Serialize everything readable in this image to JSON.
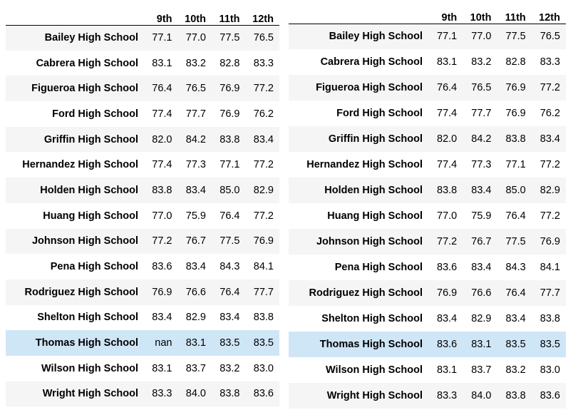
{
  "columns": [
    "9th",
    "10th",
    "11th",
    "12th"
  ],
  "left_table": {
    "rows": [
      {
        "school": "Bailey High School",
        "values": [
          "77.1",
          "77.0",
          "77.5",
          "76.5"
        ]
      },
      {
        "school": "Cabrera High School",
        "values": [
          "83.1",
          "83.2",
          "82.8",
          "83.3"
        ]
      },
      {
        "school": "Figueroa High School",
        "values": [
          "76.4",
          "76.5",
          "76.9",
          "77.2"
        ]
      },
      {
        "school": "Ford High School",
        "values": [
          "77.4",
          "77.7",
          "76.9",
          "76.2"
        ]
      },
      {
        "school": "Griffin High School",
        "values": [
          "82.0",
          "84.2",
          "83.8",
          "83.4"
        ]
      },
      {
        "school": "Hernandez High School",
        "values": [
          "77.4",
          "77.3",
          "77.1",
          "77.2"
        ]
      },
      {
        "school": "Holden High School",
        "values": [
          "83.8",
          "83.4",
          "85.0",
          "82.9"
        ]
      },
      {
        "school": "Huang High School",
        "values": [
          "77.0",
          "75.9",
          "76.4",
          "77.2"
        ]
      },
      {
        "school": "Johnson High School",
        "values": [
          "77.2",
          "76.7",
          "77.5",
          "76.9"
        ]
      },
      {
        "school": "Pena High School",
        "values": [
          "83.6",
          "83.4",
          "84.3",
          "84.1"
        ]
      },
      {
        "school": "Rodriguez High School",
        "values": [
          "76.9",
          "76.6",
          "76.4",
          "77.7"
        ]
      },
      {
        "school": "Shelton High School",
        "values": [
          "83.4",
          "82.9",
          "83.4",
          "83.8"
        ]
      },
      {
        "school": "Thomas High School",
        "values": [
          "nan",
          "83.1",
          "83.5",
          "83.5"
        ]
      },
      {
        "school": "Wilson High School",
        "values": [
          "83.1",
          "83.7",
          "83.2",
          "83.0"
        ]
      },
      {
        "school": "Wright High School",
        "values": [
          "83.3",
          "84.0",
          "83.8",
          "83.6"
        ]
      }
    ]
  },
  "right_table": {
    "rows": [
      {
        "school": "Bailey High School",
        "values": [
          "77.1",
          "77.0",
          "77.5",
          "76.5"
        ]
      },
      {
        "school": "Cabrera High School",
        "values": [
          "83.1",
          "83.2",
          "82.8",
          "83.3"
        ]
      },
      {
        "school": "Figueroa High School",
        "values": [
          "76.4",
          "76.5",
          "76.9",
          "77.2"
        ]
      },
      {
        "school": "Ford High School",
        "values": [
          "77.4",
          "77.7",
          "76.9",
          "76.2"
        ]
      },
      {
        "school": "Griffin High School",
        "values": [
          "82.0",
          "84.2",
          "83.8",
          "83.4"
        ]
      },
      {
        "school": "Hernandez High School",
        "values": [
          "77.4",
          "77.3",
          "77.1",
          "77.2"
        ]
      },
      {
        "school": "Holden High School",
        "values": [
          "83.8",
          "83.4",
          "85.0",
          "82.9"
        ]
      },
      {
        "school": "Huang High School",
        "values": [
          "77.0",
          "75.9",
          "76.4",
          "77.2"
        ]
      },
      {
        "school": "Johnson High School",
        "values": [
          "77.2",
          "76.7",
          "77.5",
          "76.9"
        ]
      },
      {
        "school": "Pena High School",
        "values": [
          "83.6",
          "83.4",
          "84.3",
          "84.1"
        ]
      },
      {
        "school": "Rodriguez High School",
        "values": [
          "76.9",
          "76.6",
          "76.4",
          "77.7"
        ]
      },
      {
        "school": "Shelton High School",
        "values": [
          "83.4",
          "82.9",
          "83.4",
          "83.8"
        ]
      },
      {
        "school": "Thomas High School",
        "values": [
          "83.6",
          "83.1",
          "83.5",
          "83.5"
        ]
      },
      {
        "school": "Wilson High School",
        "values": [
          "83.1",
          "83.7",
          "83.2",
          "83.0"
        ]
      },
      {
        "school": "Wright High School",
        "values": [
          "83.3",
          "84.0",
          "83.8",
          "83.6"
        ]
      }
    ]
  },
  "highlight_color": "#cfe6f7",
  "highlighted_school": "Thomas High School"
}
